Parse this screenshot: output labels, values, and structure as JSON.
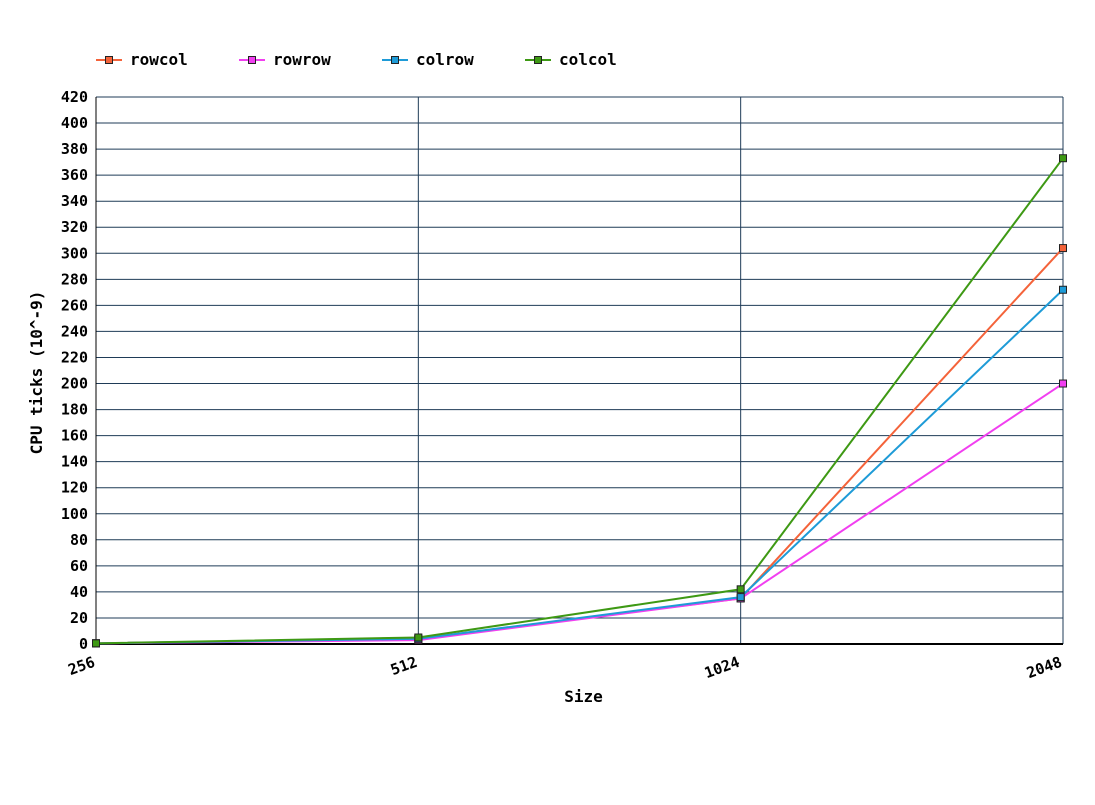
{
  "chart_data": {
    "type": "line",
    "title": "",
    "xlabel": "Size",
    "ylabel": "CPU ticks (10^-9)",
    "categories": [
      "256",
      "512",
      "1024",
      "2048"
    ],
    "ylim": [
      0,
      420
    ],
    "yticks": [
      0,
      20,
      40,
      60,
      80,
      100,
      120,
      140,
      160,
      180,
      200,
      220,
      240,
      260,
      280,
      300,
      320,
      340,
      360,
      380,
      400,
      420
    ],
    "grid": true,
    "legend_position": "top-left",
    "series": [
      {
        "name": "rowcol",
        "color": "#f4633a",
        "values": [
          0.5,
          4,
          35,
          304
        ]
      },
      {
        "name": "rowrow",
        "color": "#f13ff0",
        "values": [
          0.5,
          3,
          35,
          200
        ]
      },
      {
        "name": "colrow",
        "color": "#1e9bd7",
        "values": [
          0.5,
          4,
          36,
          272
        ]
      },
      {
        "name": "colcol",
        "color": "#3e9914",
        "values": [
          0.5,
          5,
          42,
          373
        ]
      }
    ]
  }
}
